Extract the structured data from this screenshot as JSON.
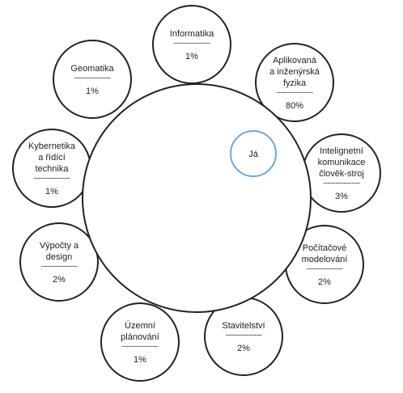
{
  "center": {
    "label": "Já",
    "accent": "#6fa8d6"
  },
  "divider": "------------------",
  "colors": {
    "stroke": "#222222",
    "fill": "#ffffff"
  },
  "nodes": [
    {
      "id": "informatika",
      "lines": [
        "Informatika"
      ],
      "value": "1%"
    },
    {
      "id": "aplikovana-a-inzenyrska-fyzika",
      "lines": [
        "Aplikovaná",
        "a inženýrská",
        "fyzika"
      ],
      "value": "80%"
    },
    {
      "id": "inteligentni-komunikace",
      "lines": [
        "Intelignetní",
        "komunikace",
        "člověk-stroj"
      ],
      "value": "3%"
    },
    {
      "id": "pocitacove-modelovani",
      "lines": [
        "Počítačové",
        "modelování"
      ],
      "value": "2%"
    },
    {
      "id": "stavitelstvi",
      "lines": [
        "Stavitelství"
      ],
      "value": "2%"
    },
    {
      "id": "uzemni-planovani",
      "lines": [
        "Územní",
        "plánování"
      ],
      "value": "1%"
    },
    {
      "id": "vypocty-a-design",
      "lines": [
        "Výpočty a",
        "design"
      ],
      "value": "2%"
    },
    {
      "id": "kybernetika-a-ridici-technika",
      "lines": [
        "Kybernetika",
        "a řídící",
        "technika"
      ],
      "value": "1%"
    },
    {
      "id": "geomatika",
      "lines": [
        "Geomatika"
      ],
      "value": "1%"
    }
  ]
}
